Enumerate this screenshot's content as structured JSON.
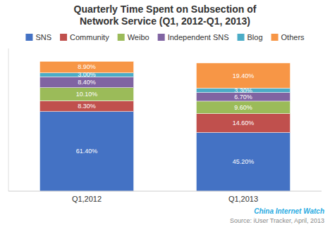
{
  "chart_data": {
    "type": "bar",
    "stacked": true,
    "title": "Quarterly Time Spent on Subsection of",
    "subtitle": "Network Service (Q1, 2012-Q1, 2013)",
    "categories": [
      "Q1,2012",
      "Q1,2013"
    ],
    "series": [
      {
        "name": "SNS",
        "color": "#4472C4",
        "values": [
          61.4,
          45.2
        ],
        "value_labels": [
          "61.40%",
          "45.20%"
        ]
      },
      {
        "name": "Community",
        "color": "#C0504D",
        "values": [
          8.3,
          14.6
        ],
        "value_labels": [
          "8.30%",
          "14.60%"
        ]
      },
      {
        "name": "Weibo",
        "color": "#9BBB59",
        "values": [
          10.1,
          9.6
        ],
        "value_labels": [
          "10.10%",
          "9.60%"
        ]
      },
      {
        "name": "Independent SNS",
        "color": "#8064A2",
        "values": [
          8.4,
          6.7
        ],
        "value_labels": [
          "8.40%",
          "6.70%"
        ]
      },
      {
        "name": "Blog",
        "color": "#4BACC6",
        "values": [
          3.0,
          3.3
        ],
        "value_labels": [
          "3.00%",
          "3.30%"
        ]
      },
      {
        "name": "Others",
        "color": "#F79646",
        "values": [
          8.9,
          19.4
        ],
        "value_labels": [
          "8.90%",
          "19.40%"
        ]
      }
    ],
    "ylim": [
      0,
      110
    ],
    "tick_labels": "x",
    "grid": false,
    "legend": "top",
    "data_labels": true,
    "annotations": [
      {
        "text": "China Internet Watch"
      },
      {
        "text": "Source: iUser Tracker, April, 2013"
      }
    ]
  }
}
